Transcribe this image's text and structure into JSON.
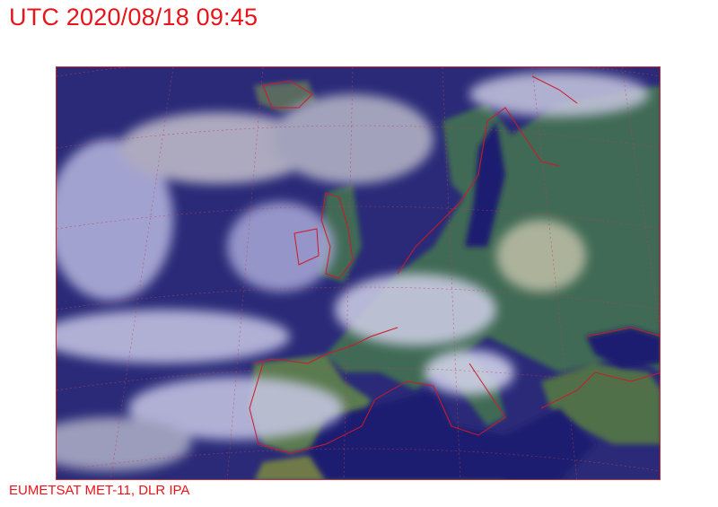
{
  "header": {
    "title": "UTC 2020/08/18 09:45"
  },
  "footer": {
    "credit": "EUMETSAT MET-11, DLR IPA"
  },
  "map": {
    "type": "satellite-imagery",
    "region": "Europe and North Atlantic",
    "colors": {
      "coastline": "#d01828",
      "graticule": "#c04050",
      "ocean": "#2a2a7a",
      "land": "#3f6b52",
      "cloud": "#c8c8e6"
    }
  }
}
